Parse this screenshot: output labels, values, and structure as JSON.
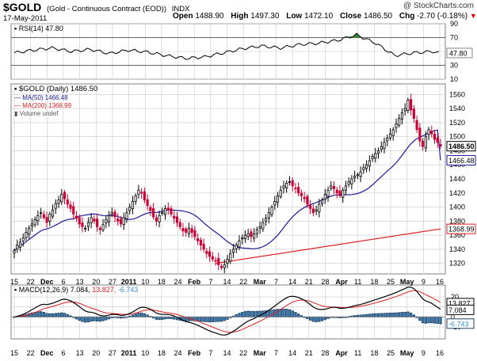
{
  "header": {
    "symbol": "$GOLD",
    "description": "(Gold - Continuous Contract (EOD))",
    "exchange": "INDX",
    "date": "17-May-2011",
    "open_label": "Open",
    "open": "1488.90",
    "high_label": "High",
    "high": "1497.30",
    "low_label": "Low",
    "low": "1472.10",
    "close_label": "Close",
    "close": "1486.50",
    "chg_label": "Chg",
    "chg": "-2.70 (-0.18%)",
    "watermark": "@ StockCharts.com"
  },
  "colors": {
    "up": "#ffffff",
    "down": "#cc0033",
    "ma50": "#1a1aa0",
    "ma200": "#e02020",
    "rsi": "#000000",
    "rsi_fill": "#2e8b2e",
    "macd": "#000000",
    "signal": "#e02020",
    "hist": "#3b8fd0",
    "grid": "#c8c8c8"
  },
  "chart_data": [
    {
      "type": "line",
      "title": "RSI(14) 47.80",
      "legend": [
        "RSI(14) 47.80"
      ],
      "ylim": [
        10,
        90
      ],
      "ticks": [
        "90",
        "70",
        "50",
        "30",
        "10"
      ],
      "reference_lines": [
        70,
        30
      ],
      "last_value": "47.80",
      "x_index_values": [
        0,
        6,
        12,
        18,
        24,
        30,
        36,
        42,
        48,
        54,
        60,
        66,
        72,
        78,
        84,
        90,
        96,
        102,
        108,
        114,
        120,
        126,
        132,
        134
      ],
      "values": [
        48,
        52,
        55,
        50,
        53,
        47,
        52,
        49,
        44,
        40,
        42,
        48,
        54,
        58,
        55,
        60,
        62,
        66,
        74,
        62,
        44,
        48,
        50,
        47.8
      ]
    },
    {
      "type": "candlestick",
      "title": "$GOLD (Daily) 1486.50",
      "legend": [
        "$GOLD (Daily) 1486.50",
        "MA(50) 1466.48",
        "MA(200) 1368.99",
        "Volume undef"
      ],
      "ylim": [
        1305,
        1575
      ],
      "y_ticks": [
        1320,
        1340,
        1360,
        1380,
        1400,
        1420,
        1440,
        1460,
        1480,
        1500,
        1520,
        1540,
        1560
      ],
      "price_close": [
        1338,
        1346,
        1350,
        1356,
        1364,
        1370,
        1376,
        1382,
        1388,
        1392,
        1385,
        1378,
        1390,
        1396,
        1405,
        1410,
        1418,
        1412,
        1404,
        1398,
        1390,
        1384,
        1376,
        1372,
        1370,
        1378,
        1385,
        1380,
        1372,
        1368,
        1375,
        1382,
        1388,
        1392,
        1386,
        1380,
        1376,
        1385,
        1392,
        1400,
        1408,
        1416,
        1424,
        1420,
        1410,
        1402,
        1395,
        1386,
        1380,
        1388,
        1392,
        1398,
        1396,
        1390,
        1384,
        1378,
        1372,
        1366,
        1364,
        1370,
        1364,
        1358,
        1352,
        1346,
        1340,
        1334,
        1330,
        1326,
        1324,
        1318,
        1314,
        1318,
        1326,
        1334,
        1340,
        1346,
        1352,
        1356,
        1360,
        1362,
        1358,
        1362,
        1368,
        1372,
        1378,
        1384,
        1392,
        1400,
        1408,
        1416,
        1424,
        1430,
        1434,
        1436,
        1430,
        1426,
        1420,
        1416,
        1412,
        1404,
        1398,
        1392,
        1396,
        1404,
        1410,
        1418,
        1424,
        1430,
        1426,
        1420,
        1416,
        1424,
        1430,
        1436,
        1440,
        1444,
        1446,
        1450,
        1456,
        1460,
        1466,
        1472,
        1476,
        1480,
        1486,
        1492,
        1498,
        1504,
        1510,
        1518,
        1526,
        1534,
        1540,
        1552,
        1538,
        1526,
        1510,
        1494,
        1486,
        1500,
        1510,
        1504,
        1496,
        1492,
        1486.5
      ],
      "ma50_last": 1466.48,
      "ma200_last": 1368.99,
      "close_label": "1486.50",
      "ma50_label": "1466.48",
      "ma200_label": "1368.99"
    },
    {
      "type": "line",
      "title": "MACD(12,26,9) 7.084, 13.827, -6.743",
      "legend_name": "MACD(12,26,9)",
      "legend_values": [
        "7.084",
        "13.827",
        "-6.743"
      ],
      "ylim": [
        -22,
        32
      ],
      "y_ticks": [
        20,
        10,
        0,
        -10
      ],
      "labels": [
        "13.827",
        "7.084",
        "-6.743"
      ]
    }
  ],
  "x_axis": [
    "15",
    "22",
    "Dec",
    "6",
    "13",
    "20",
    "27",
    "2011",
    "10",
    "18",
    "24",
    "Feb",
    "7",
    "14",
    "22",
    "Mar",
    "7",
    "14",
    "21",
    "28",
    "Apr",
    "11",
    "18",
    "25",
    "May",
    "9",
    "16"
  ]
}
